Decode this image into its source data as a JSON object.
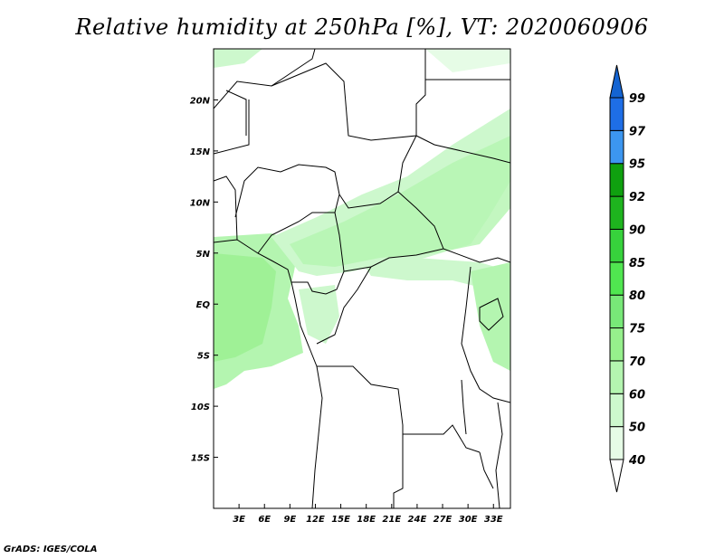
{
  "title": "Relative humidity at 250hPa [%], VT: 2020060906",
  "credit": "GrADS: IGES/COLA",
  "map": {
    "lon_range": [
      0,
      35
    ],
    "lat_range": [
      -20,
      25
    ],
    "lon_ticks": [
      {
        "v": 3,
        "label": "3E"
      },
      {
        "v": 6,
        "label": "6E"
      },
      {
        "v": 9,
        "label": "9E"
      },
      {
        "v": 12,
        "label": "12E"
      },
      {
        "v": 15,
        "label": "15E"
      },
      {
        "v": 18,
        "label": "18E"
      },
      {
        "v": 21,
        "label": "21E"
      },
      {
        "v": 24,
        "label": "24E"
      },
      {
        "v": 27,
        "label": "27E"
      },
      {
        "v": 30,
        "label": "30E"
      },
      {
        "v": 33,
        "label": "33E"
      }
    ],
    "lat_ticks": [
      {
        "v": 20,
        "label": "20N"
      },
      {
        "v": 15,
        "label": "15N"
      },
      {
        "v": 10,
        "label": "10N"
      },
      {
        "v": 5,
        "label": "5N"
      },
      {
        "v": 0,
        "label": "EQ"
      },
      {
        "v": -5,
        "label": "5S"
      },
      {
        "v": -10,
        "label": "10S"
      },
      {
        "v": -15,
        "label": "15S"
      }
    ]
  },
  "colorbar": {
    "labels": [
      "40",
      "50",
      "60",
      "70",
      "75",
      "80",
      "85",
      "90",
      "92",
      "95",
      "97",
      "99"
    ],
    "colors": [
      "#e6fce6",
      "#cdf8cd",
      "#b4f5b0",
      "#96f08c",
      "#78e878",
      "#50e650",
      "#37d23c",
      "#1eb41e",
      "#0fa00f",
      "#3c96f0",
      "#1e6ee6",
      "#1464d2"
    ],
    "below_color": "#ffffff",
    "above_color": "#1464d2"
  }
}
